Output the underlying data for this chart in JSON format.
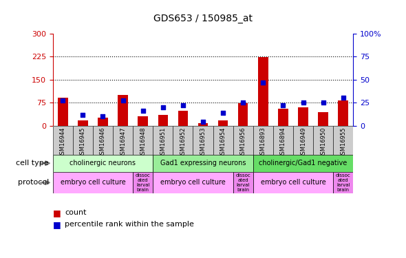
{
  "title": "GDS653 / 150985_at",
  "samples": [
    "GSM16944",
    "GSM16945",
    "GSM16946",
    "GSM16947",
    "GSM16948",
    "GSM16951",
    "GSM16952",
    "GSM16953",
    "GSM16954",
    "GSM16956",
    "GSM16893",
    "GSM16894",
    "GSM16949",
    "GSM16950",
    "GSM16955"
  ],
  "counts": [
    90,
    17,
    25,
    100,
    30,
    35,
    48,
    8,
    18,
    72,
    223,
    55,
    60,
    43,
    83
  ],
  "percentiles": [
    27,
    12,
    10,
    27,
    16,
    20,
    22,
    4,
    14,
    25,
    47,
    22,
    25,
    25,
    30
  ],
  "ylim_left": [
    0,
    300
  ],
  "ylim_right": [
    0,
    100
  ],
  "yticks_left": [
    0,
    75,
    150,
    225,
    300
  ],
  "yticks_right": [
    0,
    25,
    50,
    75,
    100
  ],
  "ytick_labels_left": [
    "0",
    "75",
    "150",
    "225",
    "300"
  ],
  "ytick_labels_right": [
    "0",
    "25",
    "50",
    "75",
    "100%"
  ],
  "hlines": [
    75,
    150,
    225
  ],
  "cell_types": [
    {
      "label": "cholinergic neurons",
      "start": 0,
      "end": 5
    },
    {
      "label": "Gad1 expressing neurons",
      "start": 5,
      "end": 10
    },
    {
      "label": "cholinergic/Gad1 negative",
      "start": 10,
      "end": 15
    }
  ],
  "cell_type_colors": [
    "#ccffcc",
    "#99ee99",
    "#66dd66"
  ],
  "protocols": [
    {
      "label": "embryo cell culture",
      "start": 0,
      "end": 4
    },
    {
      "label": "dissoc\nated\nlarval\nbrain",
      "start": 4,
      "end": 5
    },
    {
      "label": "embryo cell culture",
      "start": 5,
      "end": 9
    },
    {
      "label": "dissoc\nated\nlarval\nbrain",
      "start": 9,
      "end": 10
    },
    {
      "label": "embryo cell culture",
      "start": 10,
      "end": 14
    },
    {
      "label": "dissoc\nated\nlarval\nbrain",
      "start": 14,
      "end": 15
    }
  ],
  "protocol_colors": [
    "#ffaaff",
    "#ee88ee",
    "#ffaaff",
    "#ee88ee",
    "#ffaaff",
    "#ee88ee"
  ],
  "bar_color": "#cc0000",
  "dot_color": "#0000cc",
  "left_axis_color": "#cc0000",
  "right_axis_color": "#0000cc",
  "bg_color": "#ffffff",
  "sample_box_color": "#cccccc"
}
